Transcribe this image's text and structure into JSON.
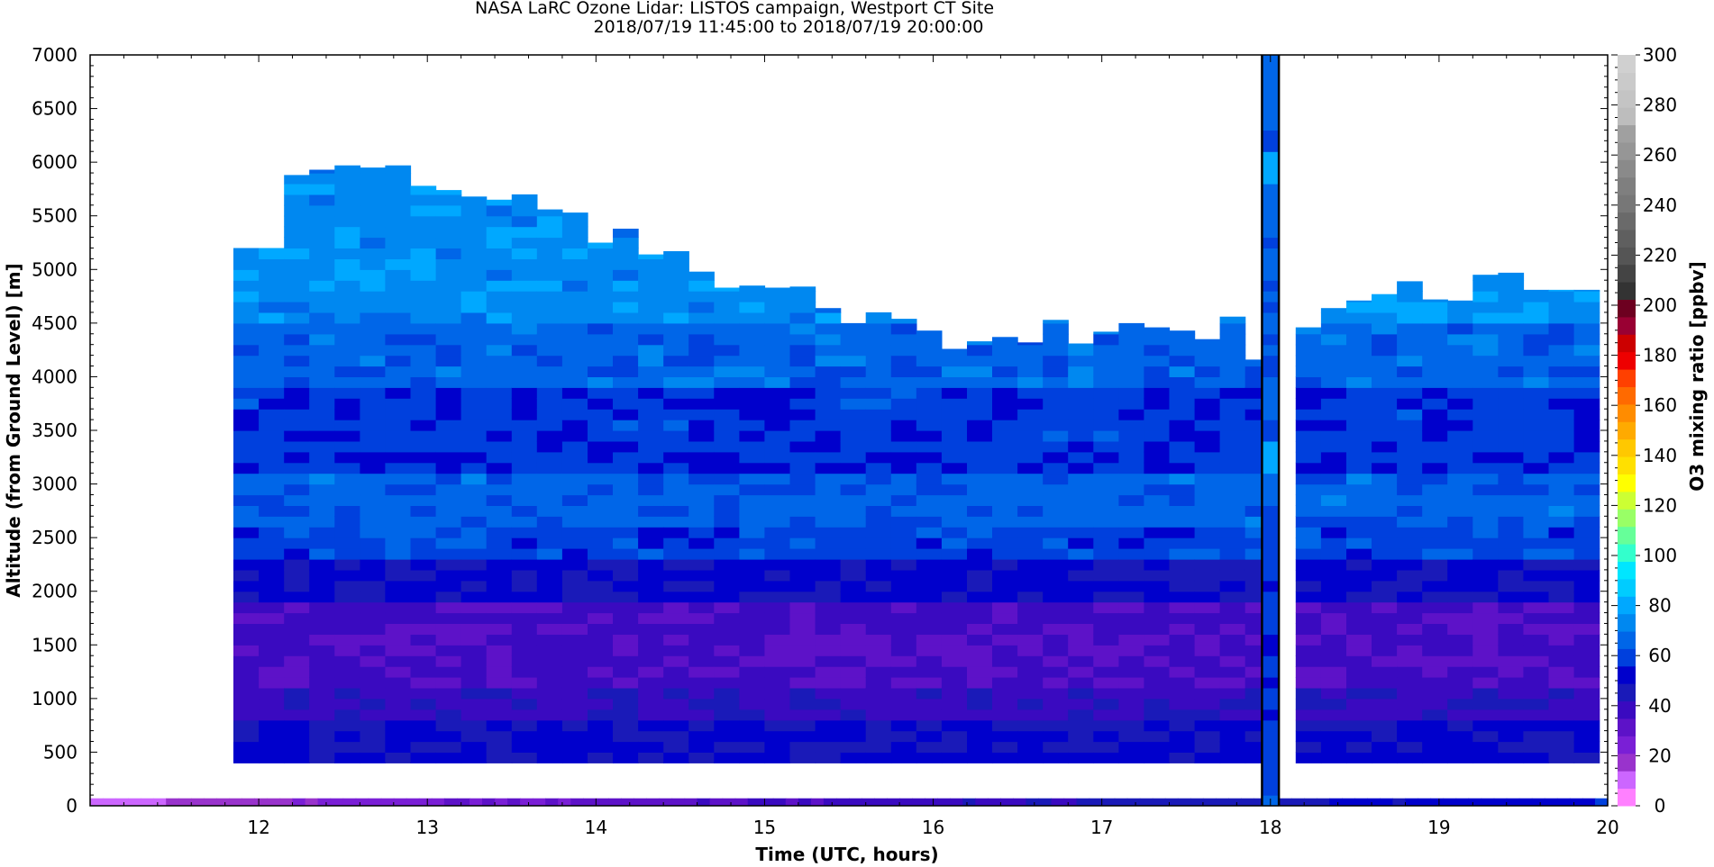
{
  "chart_data": {
    "type": "heatmap",
    "title": "NASA LaRC Ozone Lidar: LISTOS campaign, Westport CT Site",
    "subtitle": "2018/07/19 11:45:00 to 2018/07/19 20:00:00",
    "xlabel": "Time (UTC, hours)",
    "ylabel": "Altitude (from Ground Level) [m]",
    "colorbar_label": "O3 mixing ratio [ppbv]",
    "xlim": [
      11,
      20
    ],
    "ylim": [
      0,
      7000
    ],
    "clim": [
      0,
      300
    ],
    "x_ticks": [
      "12",
      "13",
      "14",
      "15",
      "16",
      "17",
      "18",
      "19",
      "20"
    ],
    "y_ticks": [
      "500",
      "1000",
      "1500",
      "2000",
      "2500",
      "3000",
      "3500",
      "4000",
      "4500",
      "5000",
      "5500",
      "6000",
      "6500",
      "7000"
    ],
    "y_tick_zero": "0",
    "colorbar_ticks": [
      "0",
      "20",
      "40",
      "60",
      "80",
      "100",
      "120",
      "140",
      "160",
      "180",
      "200",
      "220",
      "240",
      "260",
      "280",
      "300"
    ],
    "colorbar_colors": [
      "#ff80ff",
      "#cc66ff",
      "#9933cc",
      "#7a1fd6",
      "#5d12c8",
      "#3a0ac0",
      "#1a1ab8",
      "#0000cc",
      "#0040dd",
      "#0066e8",
      "#0088f0",
      "#00a8ff",
      "#00ccff",
      "#00e6ff",
      "#33ffcc",
      "#66ff99",
      "#99ff66",
      "#ccff33",
      "#ffff00",
      "#ffe000",
      "#ffc800",
      "#ffaa00",
      "#ff8c00",
      "#ff6a00",
      "#ff4000",
      "#ee0000",
      "#cc0000",
      "#990033",
      "#6d0020",
      "#333333",
      "#444444",
      "#555555",
      "#5f5f5f",
      "#6a6a6a",
      "#777777",
      "#7f7f7f",
      "#8a8a8a",
      "#969696",
      "#a0a0a0",
      "#bdbdbd",
      "#c4c4c4",
      "#cacaca",
      "#d0d0d0"
    ],
    "series": [
      {
        "name": "profile columns",
        "times": [
          11.85,
          12.0,
          12.15,
          12.3,
          12.45,
          12.6,
          12.75,
          12.9,
          13.05,
          13.2,
          13.35,
          13.5,
          13.65,
          13.8,
          13.95,
          14.1,
          14.25,
          14.4,
          14.55,
          14.7,
          14.85,
          15.0,
          15.15,
          15.3,
          15.45,
          15.6,
          15.75,
          15.9,
          16.05,
          16.2,
          16.35,
          16.5,
          16.65,
          16.8,
          16.95,
          17.1,
          17.25,
          17.4,
          17.55,
          17.7,
          17.85,
          18.15,
          18.3,
          18.45,
          18.6,
          18.75,
          18.9,
          19.05,
          19.2,
          19.35,
          19.5,
          19.65,
          19.8
        ],
        "tops_m": [
          5200,
          5200,
          5880,
          5930,
          5970,
          5950,
          5970,
          5780,
          5740,
          5680,
          5650,
          5700,
          5560,
          5530,
          5250,
          5380,
          5140,
          5170,
          4980,
          4830,
          4850,
          4830,
          4840,
          4640,
          4500,
          4600,
          4540,
          4430,
          4260,
          4330,
          4370,
          4320,
          4530,
          4310,
          4420,
          4500,
          4460,
          4430,
          4350,
          4560,
          4160,
          4460,
          4640,
          4710,
          4770,
          4890,
          4720,
          4710,
          4950,
          4970,
          4810,
          4810,
          4810
        ],
        "bottom_m": 400
      }
    ],
    "profile_layers": [
      {
        "from_m": 400,
        "to_m": 800,
        "ppbv": 50
      },
      {
        "from_m": 800,
        "to_m": 1100,
        "ppbv": 40
      },
      {
        "from_m": 1100,
        "to_m": 1900,
        "ppbv": 36
      },
      {
        "from_m": 1900,
        "to_m": 2300,
        "ppbv": 50
      },
      {
        "from_m": 2300,
        "to_m": 2600,
        "ppbv": 60
      },
      {
        "from_m": 2600,
        "to_m": 3100,
        "ppbv": 65
      },
      {
        "from_m": 3100,
        "to_m": 3900,
        "ppbv": 58
      },
      {
        "from_m": 3900,
        "to_m": 4500,
        "ppbv": 66
      },
      {
        "from_m": 4500,
        "to_m": 7000,
        "ppbv": 74
      }
    ],
    "surface_strip": {
      "from_m": 0,
      "to_m": 50,
      "ppbv_start": 10,
      "ppbv_end": 55
    },
    "marker_column": {
      "x_hours": 18.0,
      "label": ""
    }
  }
}
